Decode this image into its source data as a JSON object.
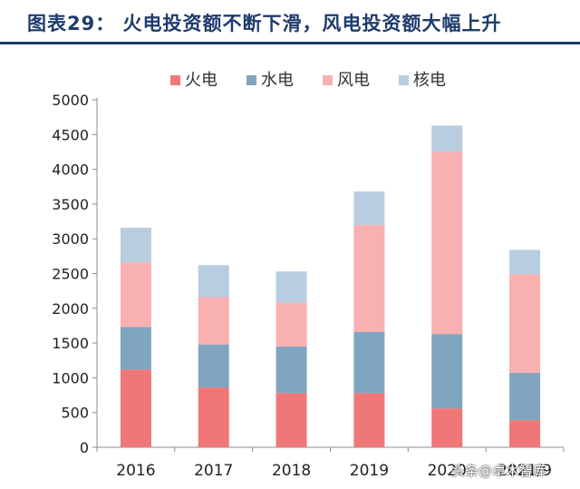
{
  "figure": {
    "title": "图表29：  火电投资额不断下滑，风电投资额大幅上升",
    "watermark": "头条@卓木智库"
  },
  "chart_data": {
    "type": "bar",
    "stacked": true,
    "categories": [
      "2016",
      "2017",
      "2018",
      "2019",
      "2020",
      "2021/9"
    ],
    "series": [
      {
        "name": "火电",
        "color": "#f07777",
        "values": [
          1120,
          860,
          780,
          780,
          560,
          390
        ]
      },
      {
        "name": "水电",
        "color": "#7fa5c0",
        "values": [
          610,
          620,
          670,
          880,
          1070,
          680
        ]
      },
      {
        "name": "风电",
        "color": "#f9b0b0",
        "values": [
          930,
          680,
          630,
          1540,
          2620,
          1420
        ]
      },
      {
        "name": "核电",
        "color": "#b8cde0",
        "values": [
          500,
          460,
          450,
          480,
          380,
          350
        ]
      }
    ],
    "ylim": [
      0,
      5000
    ],
    "yticks": [
      0,
      500,
      1000,
      1500,
      2000,
      2500,
      3000,
      3500,
      4000,
      4500,
      5000
    ],
    "xlabel": "",
    "ylabel": "",
    "grid": false,
    "legend_position": "top"
  }
}
